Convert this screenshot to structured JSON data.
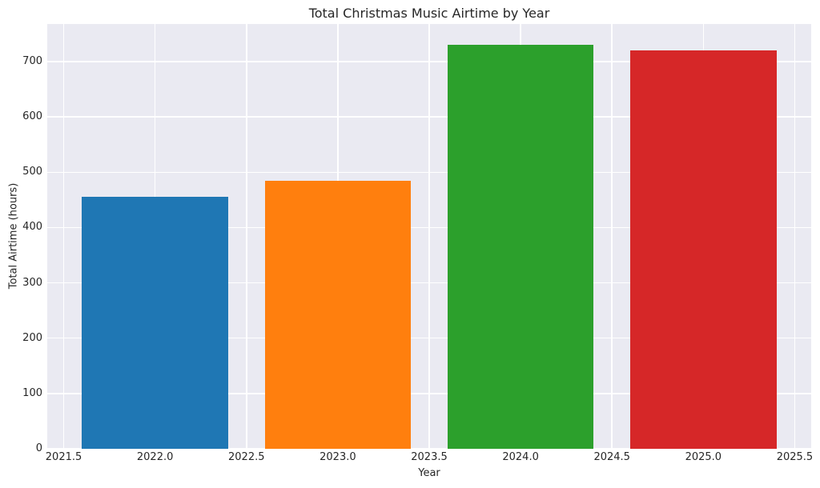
{
  "chart_data": {
    "type": "bar",
    "title": "Total Christmas Music Airtime by Year",
    "xlabel": "Year",
    "ylabel": "Total Airtime (hours)",
    "categories": [
      2022,
      2023,
      2024,
      2025
    ],
    "values": [
      455,
      485,
      730,
      720
    ],
    "bar_colors": [
      "#1f77b4",
      "#ff7f0e",
      "#2ca02c",
      "#d62728"
    ],
    "bar_width_years": 0.8,
    "xlim": [
      2021.41,
      2025.59
    ],
    "ylim": [
      0,
      768
    ],
    "x_ticks": [
      2021.5,
      2022.0,
      2022.5,
      2023.0,
      2023.5,
      2024.0,
      2024.5,
      2025.0,
      2025.5
    ],
    "x_tick_labels": [
      "2021.5",
      "2022.0",
      "2022.5",
      "2023.0",
      "2023.5",
      "2024.0",
      "2024.5",
      "2025.0",
      "2025.5"
    ],
    "y_ticks": [
      0,
      100,
      200,
      300,
      400,
      500,
      600,
      700
    ],
    "y_tick_labels": [
      "0",
      "100",
      "200",
      "300",
      "400",
      "500",
      "600",
      "700"
    ],
    "grid": true,
    "legend_position": "none",
    "styles": {
      "plot_bg": "#eaeaf2",
      "grid_color": "#ffffff",
      "text_color": "#262626",
      "figure_bg": "#ffffff"
    }
  }
}
